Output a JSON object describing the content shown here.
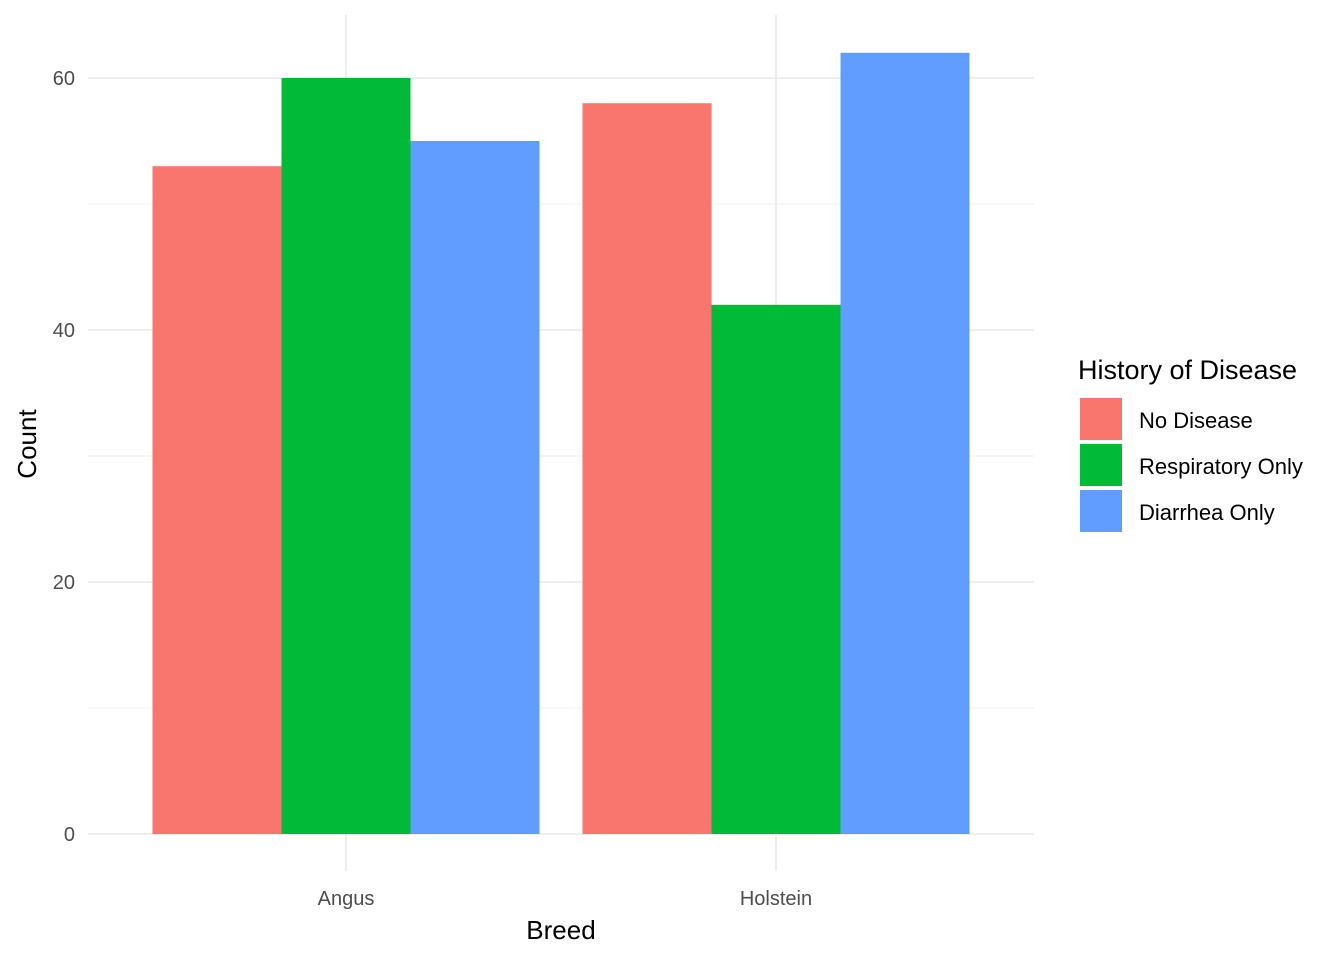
{
  "chart_data": {
    "type": "bar",
    "title": "",
    "xlabel": "Breed",
    "ylabel": "Count",
    "categories": [
      "Angus",
      "Holstein"
    ],
    "series": [
      {
        "name": "No Disease",
        "color": "#F8766D",
        "values": [
          53,
          58
        ]
      },
      {
        "name": "Respiratory Only",
        "color": "#00BA38",
        "values": [
          60,
          42
        ]
      },
      {
        "name": "Diarrhea Only",
        "color": "#619CFF",
        "values": [
          55,
          62
        ]
      }
    ],
    "ylim": [
      0,
      65
    ],
    "yticks": [
      0,
      20,
      40,
      60
    ],
    "grid": true,
    "legend": {
      "title": "History of Disease",
      "position": "right"
    }
  }
}
